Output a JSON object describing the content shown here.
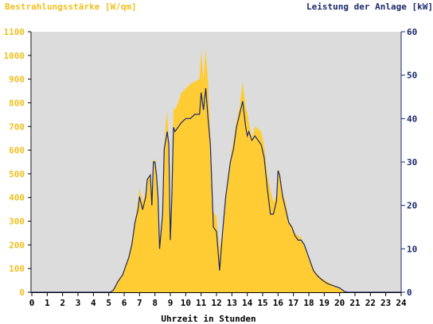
{
  "chart_data": {
    "type": "area",
    "title_left": "Bestrahlungsstärke [W/qm]",
    "title_right": "Leistung der Anlage [kW]",
    "xlabel": "Uhrzeit in Stunden",
    "xlim": [
      0,
      24
    ],
    "x_ticks": [
      "0",
      "1",
      "2",
      "3",
      "4",
      "5",
      "6",
      "7",
      "8",
      "9",
      "10",
      "11",
      "12",
      "13",
      "14",
      "15",
      "16",
      "17",
      "18",
      "19",
      "20",
      "21",
      "22",
      "23",
      "24"
    ],
    "y_left_lim": [
      0,
      1100
    ],
    "y_left_ticks": [
      "0",
      "100",
      "200",
      "300",
      "400",
      "500",
      "600",
      "700",
      "800",
      "900",
      "1000",
      "1100"
    ],
    "y_right_lim": [
      0,
      60
    ],
    "y_right_ticks": [
      "0",
      "10",
      "20",
      "30",
      "40",
      "50",
      "60"
    ],
    "grid": false,
    "colors": {
      "irradiance": "#ffcc33",
      "power": "#1a2a6c",
      "plot_bg": "#dcdcdc",
      "left_axis": "#f0c020",
      "right_axis": "#1a2a6c"
    },
    "series": [
      {
        "name": "Bestrahlungsstärke [W/qm]",
        "axis": "left",
        "x": [
          0,
          5.1,
          5.3,
          5.6,
          5.9,
          6.1,
          6.3,
          6.5,
          6.7,
          6.9,
          7.0,
          7.2,
          7.4,
          7.5,
          7.7,
          7.8,
          7.9,
          8.0,
          8.1,
          8.2,
          8.3,
          8.5,
          8.6,
          8.7,
          8.8,
          8.9,
          9.0,
          9.1,
          9.2,
          9.3,
          9.5,
          9.7,
          10.0,
          10.3,
          10.6,
          10.9,
          11.0,
          11.15,
          11.3,
          11.45,
          11.6,
          11.8,
          12.0,
          12.2,
          12.4,
          12.6,
          12.9,
          13.1,
          13.3,
          13.5,
          13.7,
          13.9,
          14.0,
          14.1,
          14.3,
          14.5,
          14.7,
          14.9,
          15.1,
          15.3,
          15.5,
          15.7,
          15.9,
          16.0,
          16.1,
          16.3,
          16.5,
          16.7,
          16.9,
          17.1,
          17.3,
          17.5,
          17.7,
          17.9,
          18.1,
          18.3,
          18.5,
          18.8,
          19.2,
          19.6,
          20.0,
          20.3,
          20.5,
          24
        ],
        "y": [
          0,
          0,
          10,
          50,
          80,
          120,
          150,
          220,
          300,
          380,
          440,
          380,
          420,
          480,
          500,
          380,
          560,
          560,
          500,
          400,
          180,
          330,
          600,
          720,
          760,
          620,
          220,
          400,
          780,
          770,
          800,
          840,
          860,
          880,
          890,
          900,
          1020,
          900,
          1030,
          880,
          660,
          340,
          320,
          180,
          260,
          420,
          560,
          640,
          720,
          780,
          890,
          780,
          760,
          720,
          650,
          700,
          690,
          680,
          620,
          500,
          430,
          380,
          410,
          520,
          510,
          420,
          380,
          300,
          280,
          250,
          240,
          230,
          200,
          170,
          130,
          100,
          80,
          60,
          45,
          30,
          20,
          5,
          0,
          0
        ]
      },
      {
        "name": "Leistung der Anlage [kW]",
        "axis": "right",
        "x": [
          0,
          5.1,
          5.3,
          5.6,
          5.9,
          6.1,
          6.3,
          6.5,
          6.7,
          6.9,
          7.0,
          7.2,
          7.4,
          7.5,
          7.7,
          7.8,
          7.9,
          8.0,
          8.1,
          8.2,
          8.3,
          8.5,
          8.6,
          8.7,
          8.8,
          8.9,
          9.0,
          9.1,
          9.2,
          9.3,
          9.5,
          9.7,
          10.0,
          10.3,
          10.6,
          10.9,
          11.0,
          11.15,
          11.3,
          11.45,
          11.6,
          11.8,
          12.0,
          12.2,
          12.4,
          12.6,
          12.9,
          13.1,
          13.3,
          13.5,
          13.7,
          13.9,
          14.0,
          14.1,
          14.3,
          14.5,
          14.7,
          14.9,
          15.1,
          15.3,
          15.5,
          15.7,
          15.9,
          16.0,
          16.1,
          16.3,
          16.5,
          16.7,
          16.9,
          17.1,
          17.3,
          17.5,
          17.7,
          17.9,
          18.1,
          18.3,
          18.5,
          18.8,
          19.2,
          19.6,
          20.0,
          20.3,
          20.5,
          24
        ],
        "y": [
          0,
          0,
          0.5,
          2.5,
          4,
          6,
          8,
          11,
          16,
          19,
          22,
          19,
          22,
          26,
          27,
          20,
          30,
          30,
          27,
          22,
          10,
          18,
          33,
          35,
          37,
          34,
          12,
          22,
          38,
          37,
          38,
          39,
          40,
          40,
          41,
          41,
          46,
          42,
          47,
          40,
          34,
          15,
          14,
          5,
          14,
          22,
          30,
          33,
          38,
          41,
          44,
          38,
          36,
          37,
          35,
          36,
          35,
          34,
          31,
          24,
          18,
          18,
          21,
          28,
          27,
          22,
          19,
          16,
          15,
          13,
          12,
          12,
          11,
          9,
          7,
          5,
          4,
          3,
          2,
          1.5,
          1,
          0.2,
          0,
          0
        ]
      }
    ]
  }
}
